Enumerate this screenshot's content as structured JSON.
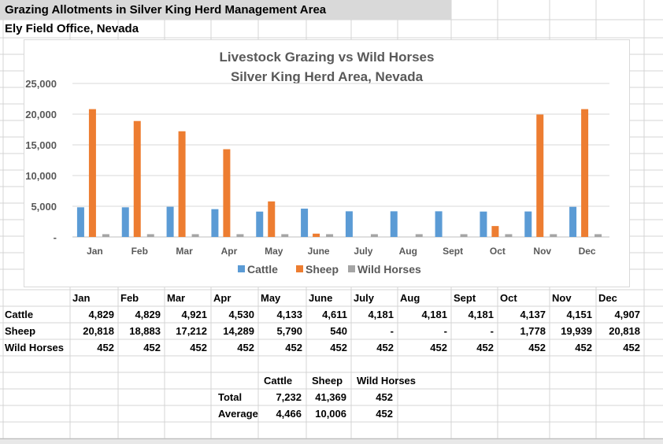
{
  "sheet": {
    "title": "Grazing Allotments in Silver King  Herd Management Area",
    "subtitle": "Ely Field Office, Nevada"
  },
  "table": {
    "months": [
      "Jan",
      "Feb",
      "Mar",
      "Apr",
      "May",
      "June",
      "July",
      "Aug",
      "Sept",
      "Oct",
      "Nov",
      "Dec"
    ],
    "rows": [
      {
        "label": "Cattle",
        "values": [
          "4,829",
          "4,829",
          "4,921",
          "4,530",
          "4,133",
          "4,611",
          "4,181",
          "4,181",
          "4,181",
          "4,137",
          "4,151",
          "4,907"
        ]
      },
      {
        "label": "Sheep",
        "values": [
          "20,818",
          "18,883",
          "17,212",
          "14,289",
          "5,790",
          "540",
          "-",
          "-",
          "-",
          "1,778",
          "19,939",
          "20,818"
        ]
      },
      {
        "label": "Wild Horses",
        "values": [
          "452",
          "452",
          "452",
          "452",
          "452",
          "452",
          "452",
          "452",
          "452",
          "452",
          "452",
          "452"
        ]
      }
    ]
  },
  "summary": {
    "headers": [
      "Cattle",
      "Sheep",
      "Wild Horses"
    ],
    "rows": [
      {
        "label": "Total",
        "values": [
          "7,232",
          "41,369",
          "452"
        ]
      },
      {
        "label": "Average",
        "values": [
          "4,466",
          "10,006",
          "452"
        ]
      }
    ]
  },
  "chart_data": {
    "type": "bar",
    "title": "Livestock Grazing vs Wild Horses",
    "subtitle": "Silver King Herd Area, Nevada",
    "categories": [
      "Jan",
      "Feb",
      "Mar",
      "Apr",
      "May",
      "June",
      "July",
      "Aug",
      "Sept",
      "Oct",
      "Nov",
      "Dec"
    ],
    "series": [
      {
        "name": "Cattle",
        "color": "#5b9bd5",
        "values": [
          4829,
          4829,
          4921,
          4530,
          4133,
          4611,
          4181,
          4181,
          4181,
          4137,
          4151,
          4907
        ]
      },
      {
        "name": "Sheep",
        "color": "#ed7d31",
        "values": [
          20818,
          18883,
          17212,
          14289,
          5790,
          540,
          0,
          0,
          0,
          1778,
          19939,
          20818
        ]
      },
      {
        "name": "Wild Horses",
        "color": "#a5a5a5",
        "values": [
          452,
          452,
          452,
          452,
          452,
          452,
          452,
          452,
          452,
          452,
          452,
          452
        ]
      }
    ],
    "yticks": [
      "-",
      "5,000",
      "10,000",
      "15,000",
      "20,000",
      "25,000"
    ],
    "ylim": [
      0,
      25000
    ],
    "grid": true,
    "legend": "bottom"
  }
}
